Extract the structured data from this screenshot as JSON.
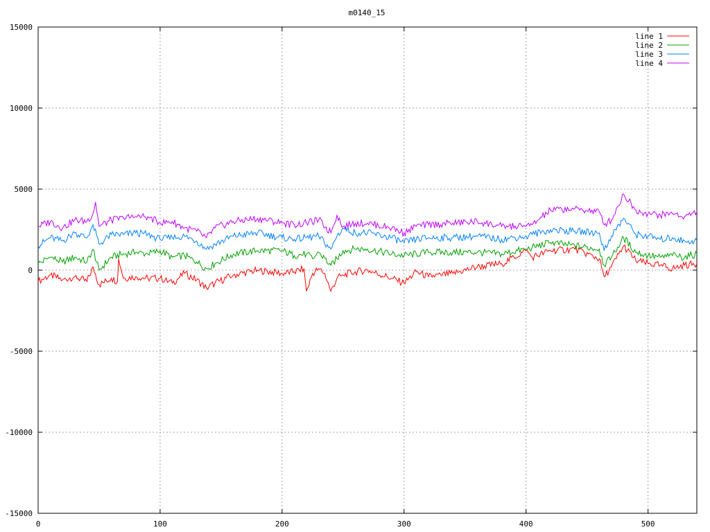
{
  "chart_data": {
    "type": "line",
    "title": "m0140_15",
    "xlabel": "",
    "ylabel": "",
    "xlim": [
      0,
      540
    ],
    "ylim": [
      -15000,
      15000
    ],
    "xticks": [
      0,
      100,
      200,
      300,
      400,
      500
    ],
    "yticks": [
      -15000,
      -10000,
      -5000,
      0,
      5000,
      10000,
      15000
    ],
    "grid": true,
    "legend_position": "top-right",
    "series": [
      {
        "name": "line 1",
        "color": "#ff0000",
        "x": [
          0,
          10,
          20,
          30,
          40,
          45,
          50,
          60,
          65,
          66,
          70,
          80,
          90,
          100,
          110,
          120,
          130,
          138,
          145,
          160,
          180,
          200,
          210,
          218,
          220,
          225,
          230,
          235,
          240,
          245,
          250,
          260,
          270,
          290,
          300,
          310,
          320,
          330,
          340,
          360,
          380,
          400,
          405,
          420,
          440,
          460,
          464,
          470,
          480,
          490,
          500,
          510,
          520,
          530,
          540
        ],
        "values": [
          -700,
          -300,
          -600,
          -400,
          -700,
          200,
          -900,
          -500,
          -700,
          700,
          -500,
          -400,
          -500,
          -500,
          -800,
          -200,
          -600,
          -1100,
          -800,
          -300,
          0,
          -200,
          -100,
          100,
          -1300,
          -200,
          100,
          -200,
          -1300,
          -500,
          -300,
          -100,
          0,
          -500,
          -800,
          -100,
          -400,
          -300,
          -200,
          200,
          400,
          1200,
          800,
          1200,
          1300,
          700,
          -400,
          200,
          1500,
          600,
          400,
          300,
          100,
          300,
          400
        ]
      },
      {
        "name": "line 2",
        "color": "#00a000",
        "x": [
          0,
          10,
          20,
          30,
          40,
          45,
          50,
          60,
          70,
          80,
          90,
          100,
          110,
          120,
          130,
          138,
          145,
          160,
          180,
          200,
          210,
          220,
          225,
          230,
          240,
          245,
          250,
          260,
          270,
          290,
          300,
          310,
          320,
          340,
          360,
          380,
          400,
          405,
          420,
          440,
          460,
          464,
          470,
          480,
          490,
          500,
          510,
          520,
          530,
          540
        ],
        "values": [
          400,
          800,
          500,
          800,
          500,
          1300,
          0,
          800,
          1000,
          1100,
          1000,
          1200,
          800,
          900,
          500,
          100,
          400,
          1000,
          1200,
          1200,
          900,
          1000,
          700,
          1100,
          300,
          700,
          1200,
          1300,
          1300,
          1000,
          900,
          1000,
          1100,
          1100,
          1100,
          1000,
          1300,
          1400,
          1700,
          1500,
          1300,
          300,
          800,
          2000,
          1100,
          900,
          800,
          900,
          800,
          1000
        ]
      },
      {
        "name": "line 3",
        "color": "#0080ff",
        "x": [
          0,
          10,
          20,
          30,
          40,
          45,
          50,
          60,
          70,
          80,
          90,
          100,
          110,
          120,
          130,
          138,
          145,
          160,
          180,
          200,
          210,
          220,
          230,
          240,
          245,
          250,
          260,
          270,
          290,
          300,
          310,
          320,
          340,
          360,
          380,
          400,
          405,
          420,
          440,
          460,
          464,
          470,
          480,
          490,
          500,
          510,
          520,
          530,
          540
        ],
        "values": [
          1500,
          2000,
          1800,
          2300,
          2000,
          2800,
          1600,
          2200,
          2200,
          2300,
          2200,
          1900,
          2000,
          2100,
          1800,
          1300,
          1600,
          2100,
          2300,
          2000,
          1900,
          2000,
          2100,
          1300,
          2100,
          2600,
          2300,
          2300,
          2000,
          1700,
          1900,
          2000,
          2000,
          2100,
          1900,
          2100,
          2200,
          2500,
          2400,
          2300,
          1200,
          2100,
          3200,
          2200,
          2100,
          1900,
          2000,
          1800,
          1800
        ]
      },
      {
        "name": "line 4",
        "color": "#c000ff",
        "x": [
          0,
          10,
          20,
          30,
          40,
          45,
          47,
          50,
          60,
          70,
          80,
          90,
          100,
          110,
          120,
          130,
          138,
          145,
          160,
          180,
          200,
          210,
          220,
          230,
          240,
          245,
          250,
          260,
          270,
          290,
          300,
          310,
          320,
          340,
          360,
          380,
          400,
          405,
          420,
          440,
          460,
          464,
          470,
          480,
          490,
          500,
          510,
          520,
          530,
          540
        ],
        "values": [
          2700,
          3000,
          2600,
          3100,
          3000,
          3500,
          4200,
          2700,
          3100,
          3200,
          3300,
          3300,
          2900,
          3000,
          2600,
          2400,
          2000,
          2600,
          3000,
          3200,
          2900,
          2800,
          2900,
          3100,
          2300,
          3400,
          2700,
          2900,
          2900,
          2600,
          2300,
          2700,
          2800,
          2900,
          3000,
          2700,
          2700,
          2800,
          3700,
          3800,
          3600,
          2800,
          3100,
          4700,
          3700,
          3500,
          3400,
          3500,
          3300,
          3600
        ]
      }
    ]
  }
}
